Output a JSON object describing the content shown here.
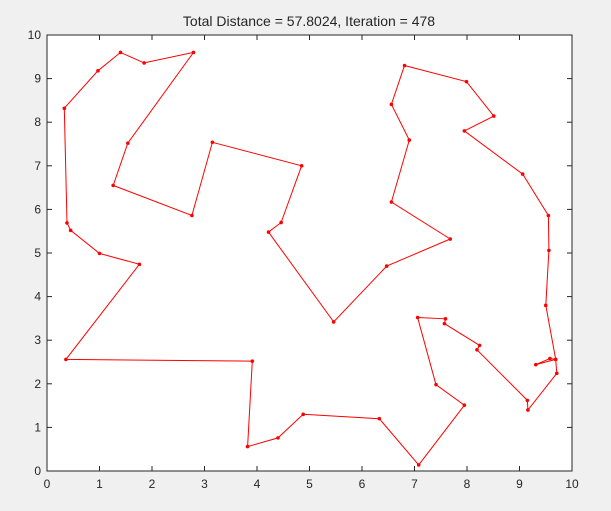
{
  "window": {
    "background": "#f0f0f0"
  },
  "chart_data": {
    "type": "line",
    "title": "Total Distance = 57.8024, Iteration = 478",
    "xlabel": "",
    "ylabel": "",
    "xlim": [
      0,
      10
    ],
    "ylim": [
      0,
      10
    ],
    "xticks": [
      0,
      1,
      2,
      3,
      4,
      5,
      6,
      7,
      8,
      9,
      10
    ],
    "yticks": [
      0,
      1,
      2,
      3,
      4,
      5,
      6,
      7,
      8,
      9,
      10
    ],
    "grid": false,
    "series_color": "#ff0000",
    "marker": "dot",
    "closed": true,
    "series": [
      {
        "x": [
          0.33,
          0.38,
          0.45,
          1.0,
          1.76,
          0.36,
          3.91,
          3.82,
          4.4,
          4.88,
          6.33,
          7.08,
          7.95,
          7.41,
          7.06,
          7.59,
          7.57,
          8.24,
          8.19,
          9.15,
          9.16,
          9.71,
          9.69,
          9.58,
          9.31,
          9.69,
          9.5,
          9.56,
          9.55,
          9.06,
          7.95,
          8.51,
          7.99,
          6.81,
          6.56,
          6.9,
          6.56,
          7.68,
          6.47,
          5.46,
          4.22,
          4.46,
          4.85,
          3.15,
          2.76,
          1.26,
          1.54,
          2.79,
          1.85,
          1.4,
          0.97
        ],
        "y": [
          8.32,
          5.69,
          5.52,
          4.99,
          4.74,
          2.56,
          2.52,
          0.56,
          0.76,
          1.3,
          1.2,
          0.14,
          1.51,
          1.98,
          3.52,
          3.49,
          3.38,
          2.88,
          2.78,
          1.62,
          1.4,
          2.24,
          2.56,
          2.58,
          2.44,
          2.56,
          3.8,
          5.06,
          5.86,
          6.81,
          7.8,
          8.14,
          8.93,
          9.3,
          8.41,
          7.59,
          6.17,
          5.32,
          4.7,
          3.42,
          5.48,
          5.7,
          7.0,
          7.54,
          5.86,
          6.55,
          7.52,
          9.6,
          9.36,
          9.6,
          9.18
        ]
      }
    ]
  }
}
